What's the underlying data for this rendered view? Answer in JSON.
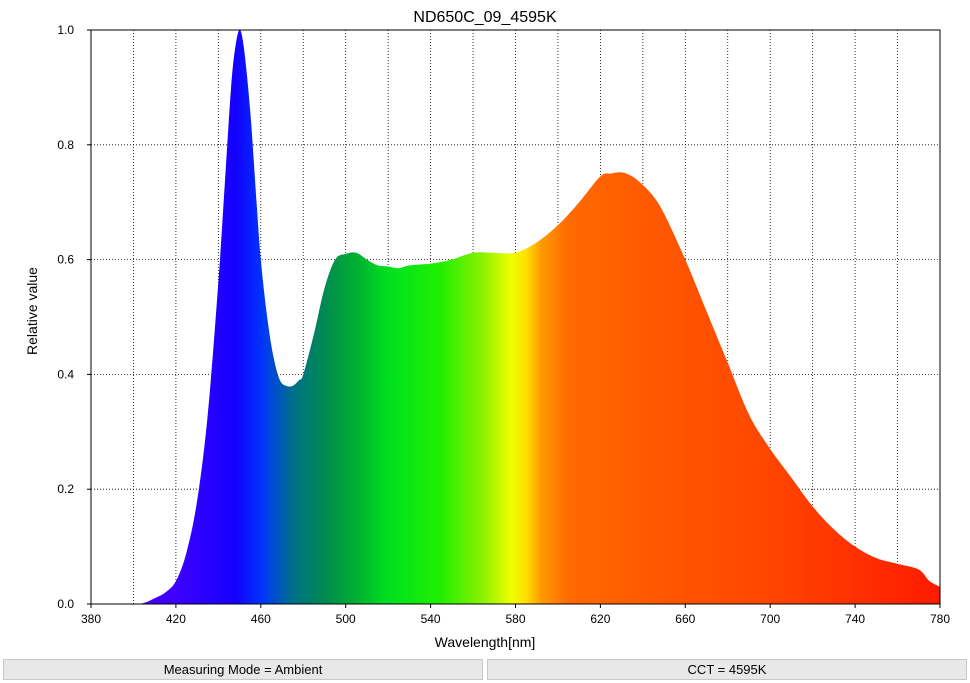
{
  "chart_data": {
    "type": "area",
    "title": "ND650C_09_4595K",
    "xlabel": "Wavelength[nm]",
    "ylabel": "Relative value",
    "xlim": [
      380,
      780
    ],
    "ylim": [
      0,
      1.0
    ],
    "x_ticks": [
      380,
      420,
      460,
      500,
      540,
      580,
      620,
      660,
      700,
      740,
      780
    ],
    "y_ticks": [
      0.0,
      0.2,
      0.4,
      0.6,
      0.8,
      1.0
    ],
    "x_tick_labels": [
      "380",
      "420",
      "460",
      "500",
      "540",
      "580",
      "620",
      "660",
      "700",
      "740",
      "780"
    ],
    "y_tick_labels": [
      "0.0",
      "0.2",
      "0.4",
      "0.6",
      "0.8",
      "1.0"
    ],
    "x_gridlines": [
      400,
      420,
      440,
      460,
      480,
      500,
      520,
      540,
      560,
      580,
      600,
      620,
      640,
      660,
      680,
      700,
      720,
      740,
      760
    ],
    "grid": true,
    "grid_style": "dotted",
    "fill": "visible-spectrum color gradient",
    "series": [
      {
        "x": [
          380,
          400,
          405,
          410,
          415,
          420,
          425,
          430,
          435,
          440,
          443,
          446,
          448,
          450,
          452,
          455,
          458,
          460,
          463,
          466,
          469,
          472,
          475,
          478,
          480,
          485,
          490,
          495,
          500,
          505,
          510,
          515,
          520,
          525,
          530,
          540,
          550,
          560,
          570,
          580,
          590,
          600,
          610,
          620,
          625,
          630,
          635,
          640,
          645,
          650,
          660,
          670,
          680,
          690,
          700,
          710,
          720,
          730,
          740,
          750,
          760,
          770,
          775,
          780
        ],
        "y": [
          0.0,
          0.0,
          0.002,
          0.01,
          0.02,
          0.04,
          0.09,
          0.18,
          0.33,
          0.56,
          0.73,
          0.9,
          0.97,
          1.0,
          0.97,
          0.86,
          0.7,
          0.6,
          0.5,
          0.43,
          0.39,
          0.38,
          0.38,
          0.39,
          0.4,
          0.47,
          0.55,
          0.6,
          0.61,
          0.612,
          0.6,
          0.59,
          0.588,
          0.585,
          0.59,
          0.593,
          0.6,
          0.612,
          0.612,
          0.612,
          0.63,
          0.66,
          0.7,
          0.745,
          0.75,
          0.752,
          0.745,
          0.73,
          0.71,
          0.68,
          0.6,
          0.51,
          0.42,
          0.33,
          0.27,
          0.22,
          0.17,
          0.13,
          0.1,
          0.08,
          0.07,
          0.06,
          0.04,
          0.03
        ]
      }
    ]
  },
  "status_bar": {
    "measuring_mode": "Measuring Mode = Ambient",
    "cct": "CCT = 4595K"
  }
}
